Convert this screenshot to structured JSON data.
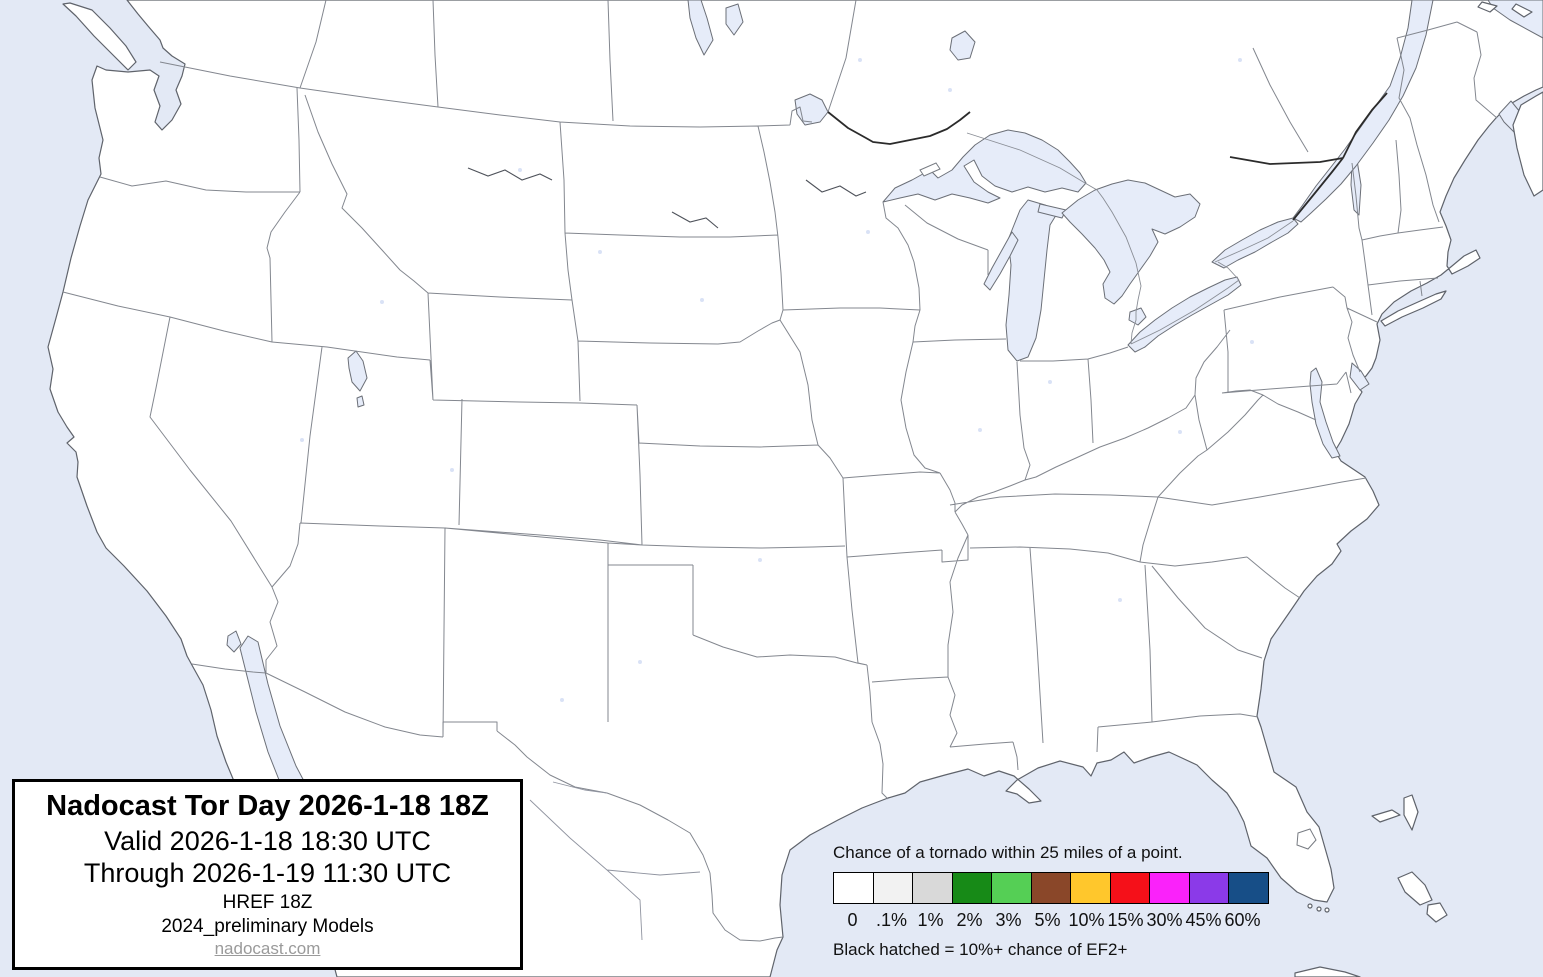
{
  "title_box": {
    "heading": "Nadocast Tor Day 2026-1-18 18Z",
    "valid": "Valid 2026-1-18 18:30 UTC",
    "through": "Through 2026-1-19 11:30 UTC",
    "model": "HREF 18Z",
    "models": "2024_preliminary Models",
    "site": "nadocast.com"
  },
  "legend": {
    "heading": "Chance of a tornado within 25 miles of a point.",
    "note": "Black hatched = 10%+ chance of EF2+",
    "items": [
      {
        "label": "0",
        "color": "#ffffff"
      },
      {
        "label": ".1%",
        "color": "#f2f2f2"
      },
      {
        "label": "1%",
        "color": "#d9d9d9"
      },
      {
        "label": "2%",
        "color": "#178a17"
      },
      {
        "label": "3%",
        "color": "#55cf55"
      },
      {
        "label": "5%",
        "color": "#8a4729"
      },
      {
        "label": "10%",
        "color": "#ffc72c"
      },
      {
        "label": "15%",
        "color": "#f51019"
      },
      {
        "label": "30%",
        "color": "#fa22fa"
      },
      {
        "label": "45%",
        "color": "#8b3ae8"
      },
      {
        "label": "60%",
        "color": "#174e87"
      }
    ]
  },
  "map": {
    "region": "Contiguous United States forecast map",
    "water_color": "#e3e9f5",
    "land_color": "#ffffff"
  }
}
